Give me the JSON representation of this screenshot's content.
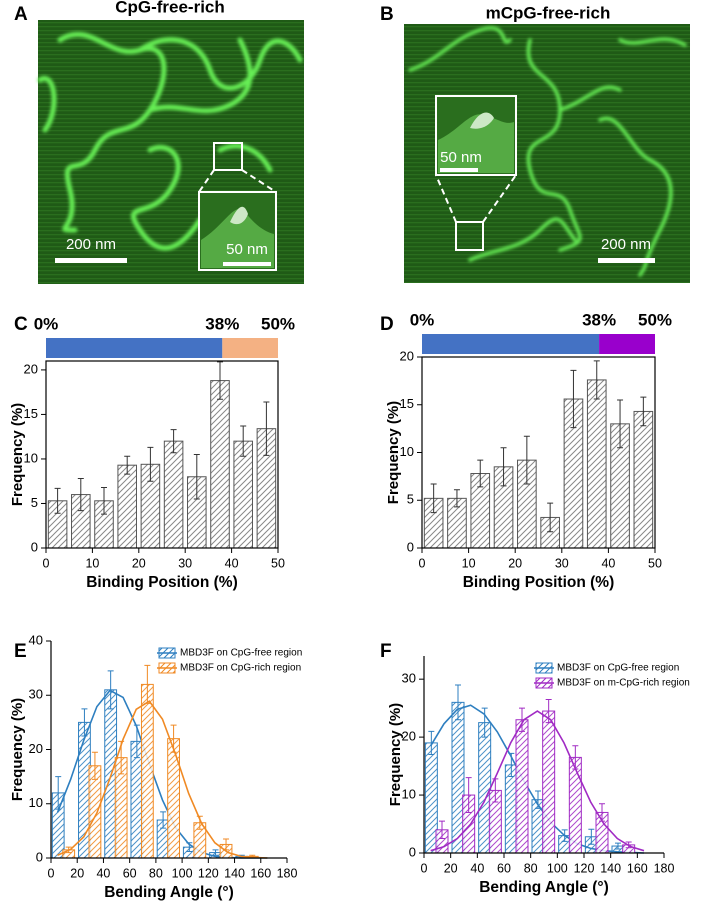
{
  "images": [
    {
      "panel": "A",
      "title": "CpG-free-rich",
      "scale_bar": "200 nm",
      "inset_scale_bar": "50 nm"
    },
    {
      "panel": "B",
      "title": "mCpG-free-rich",
      "scale_bar": "200 nm",
      "inset_scale_bar": "50 nm"
    }
  ],
  "chart_data": [
    {
      "type": "bar",
      "panel": "C",
      "region_bar": {
        "ticks": [
          {
            "value": 0,
            "label": "0%"
          },
          {
            "value": 38,
            "label": "38%"
          },
          {
            "value": 50,
            "label": "50%"
          }
        ],
        "colors": [
          "#4472c4",
          "#f4b183"
        ]
      },
      "x": [
        2.5,
        7.5,
        12.5,
        17.5,
        22.5,
        27.5,
        32.5,
        37.5,
        42.5,
        47.5
      ],
      "values": [
        5.3,
        6.0,
        5.3,
        9.3,
        9.4,
        12.0,
        8.0,
        18.8,
        12.0,
        13.4
      ],
      "errors": [
        1.4,
        1.8,
        1.5,
        1.0,
        1.9,
        1.3,
        2.5,
        2.1,
        1.7,
        3.0
      ],
      "color": "#666666",
      "xlim": [
        0,
        50
      ],
      "ylim": [
        0,
        21
      ],
      "xticks": [
        0,
        10,
        20,
        30,
        40,
        50
      ],
      "yticks": [
        0,
        5,
        10,
        15,
        20
      ],
      "x_label": "Binding Position (%)",
      "y_label": "Frequency (%)"
    },
    {
      "type": "bar",
      "panel": "D",
      "region_bar": {
        "ticks": [
          {
            "value": 0,
            "label": "0%"
          },
          {
            "value": 38,
            "label": "38%"
          },
          {
            "value": 50,
            "label": "50%"
          }
        ],
        "colors": [
          "#4472c4",
          "#9900cc"
        ]
      },
      "x": [
        2.5,
        7.5,
        12.5,
        17.5,
        22.5,
        27.5,
        32.5,
        37.5,
        42.5,
        47.5
      ],
      "values": [
        5.2,
        5.2,
        7.8,
        8.5,
        9.2,
        3.2,
        15.6,
        17.6,
        13.0,
        14.3
      ],
      "errors": [
        1.5,
        0.9,
        1.4,
        2.0,
        2.5,
        1.5,
        3.0,
        2.0,
        2.5,
        1.5
      ],
      "color": "#666666",
      "xlim": [
        0,
        50
      ],
      "ylim": [
        0,
        20
      ],
      "xticks": [
        0,
        10,
        20,
        30,
        40,
        50
      ],
      "yticks": [
        0,
        5,
        10,
        15,
        20
      ],
      "x_label": "Binding Position (%)",
      "y_label": "Frequency (%)"
    },
    {
      "type": "bar",
      "panel": "E",
      "x": [
        10,
        30,
        50,
        70,
        90,
        110,
        130,
        150
      ],
      "fit_x": [
        5,
        15,
        25,
        35,
        45,
        55,
        65,
        75,
        85,
        95,
        105,
        115,
        125,
        135,
        145,
        155,
        165
      ],
      "series": [
        {
          "name": "MBD3F on CpG-free region",
          "color": "#2e7fc0",
          "values": [
            12.0,
            25.0,
            31.0,
            21.5,
            7.0,
            2.0,
            1.0,
            0.3
          ],
          "errors": [
            3.0,
            2.5,
            3.5,
            3.0,
            1.5,
            0.8,
            0.5,
            0.2
          ],
          "fit": [
            8.4,
            14.5,
            21.7,
            27.9,
            30.9,
            29.6,
            24.4,
            17.4,
            10.7,
            5.6,
            2.6,
            1.0,
            0.3,
            0.1,
            0.0,
            0.0,
            0.0
          ]
        },
        {
          "name": "MBD3F on CpG-rich region",
          "color": "#f08a24",
          "values": [
            1.5,
            17.0,
            18.5,
            32.0,
            22.0,
            6.5,
            2.5,
            0.3
          ],
          "errors": [
            0.5,
            2.5,
            3.0,
            3.5,
            2.5,
            1.2,
            1.0,
            0.2
          ],
          "fit": [
            0.5,
            1.6,
            3.9,
            8.3,
            14.7,
            21.9,
            27.4,
            28.9,
            25.6,
            19.1,
            11.9,
            6.3,
            2.8,
            1.0,
            0.3,
            0.1,
            0.0
          ]
        }
      ],
      "legend": "upper right",
      "xlim": [
        0,
        180
      ],
      "ylim": [
        0,
        40
      ],
      "xticks": [
        0,
        20,
        40,
        60,
        80,
        100,
        120,
        140,
        160,
        180
      ],
      "yticks": [
        0,
        10,
        20,
        30,
        40
      ],
      "x_label": "Bending Angle (°)",
      "y_label": "Frequency (%)"
    },
    {
      "type": "bar",
      "panel": "F",
      "x": [
        10,
        30,
        50,
        70,
        90,
        110,
        130,
        150
      ],
      "fit_x": [
        5,
        15,
        25,
        35,
        45,
        55,
        65,
        75,
        85,
        95,
        105,
        115,
        125,
        135,
        145,
        155,
        165
      ],
      "series": [
        {
          "name": "MBD3F on CpG-free region",
          "color": "#2e7fc0",
          "values": [
            19.0,
            26.0,
            22.5,
            15.2,
            9.2,
            3.0,
            2.8,
            1.2
          ],
          "errors": [
            2.0,
            3.0,
            2.5,
            2.0,
            1.5,
            1.0,
            1.3,
            0.5
          ],
          "fit": [
            18.5,
            22.3,
            24.8,
            25.5,
            24.0,
            20.9,
            16.8,
            12.4,
            8.5,
            5.3,
            3.1,
            1.6,
            0.8,
            0.4,
            0.2,
            0.1,
            0.0
          ]
        },
        {
          "name": "MBD3F on m-CpG-rich region",
          "color": "#a12bc4",
          "values": [
            4.0,
            10.0,
            10.8,
            23.0,
            24.5,
            16.5,
            7.0,
            1.4
          ],
          "errors": [
            1.5,
            3.0,
            2.0,
            2.0,
            2.0,
            2.0,
            1.5,
            0.5
          ],
          "fit": [
            0.4,
            1.1,
            2.5,
            5.0,
            8.8,
            13.8,
            19.0,
            23.0,
            24.5,
            23.0,
            19.0,
            13.8,
            8.8,
            5.0,
            2.5,
            1.1,
            0.4
          ]
        }
      ],
      "legend": "upper right",
      "xlim": [
        0,
        180
      ],
      "ylim": [
        0,
        34
      ],
      "xticks": [
        0,
        20,
        40,
        60,
        80,
        100,
        120,
        140,
        160,
        180
      ],
      "yticks": [
        0,
        10,
        20,
        30
      ],
      "x_label": "Bending Angle (°)",
      "y_label": "Frequency (%)"
    }
  ]
}
